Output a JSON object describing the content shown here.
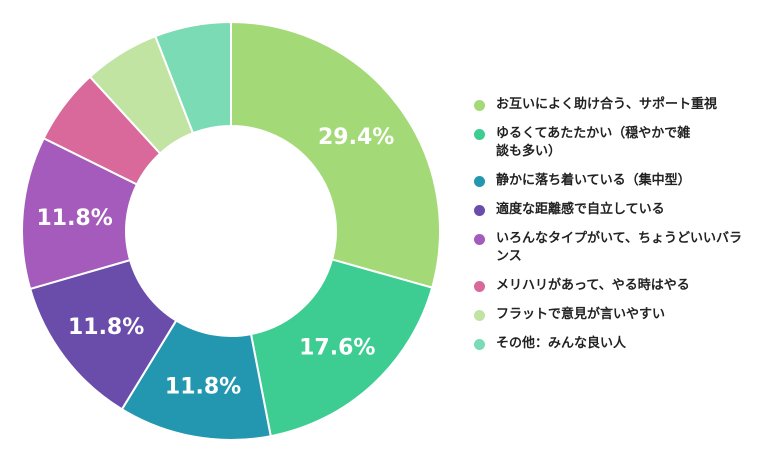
{
  "chart_data": {
    "type": "pie",
    "donut": true,
    "categories": [
      "お互いによく助け合う、サポート重視",
      "ゆるくてあたたかい（穏やかで雑談も多い）",
      "静かに落ち着いている（集中型）",
      "適度な距離感で自立している",
      "いろんなタイプがいて、ちょうどいいバランス",
      "メリハリがあって、やる時はやる",
      "フラットで意見が言いやすい",
      "その他：みんな良い人"
    ],
    "values": [
      29.4,
      17.6,
      11.8,
      11.8,
      11.8,
      5.9,
      5.9,
      5.9
    ],
    "data_labels": [
      "29.4%",
      "17.6%",
      "11.8%",
      "11.8%",
      "11.8%",
      "",
      "",
      ""
    ],
    "colors": [
      "#a3d977",
      "#3dcc91",
      "#2397b0",
      "#6a4cab",
      "#a45bbb",
      "#d9699a",
      "#c2e4a2",
      "#7adbb5"
    ],
    "legend_placement": "right"
  }
}
